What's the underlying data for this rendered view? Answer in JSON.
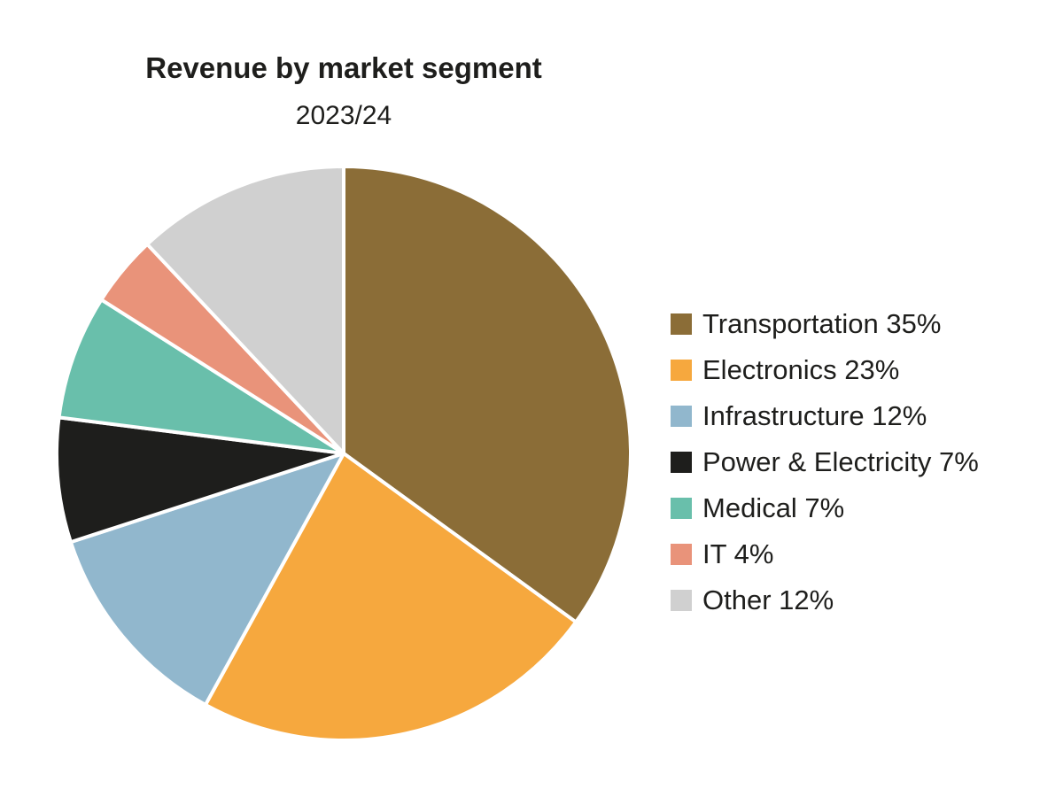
{
  "chart_data": {
    "type": "pie",
    "title": "Revenue by market segment",
    "subtitle": "2023/24",
    "legend_position": "right",
    "slices": [
      {
        "label": "Transportation 35%",
        "name": "Transportation",
        "value": 35,
        "color": "#8B6D37"
      },
      {
        "label": "Electronics 23%",
        "name": "Electronics",
        "value": 23,
        "color": "#F6A83E"
      },
      {
        "label": "Infrastructure 12%",
        "name": "Infrastructure",
        "value": 12,
        "color": "#91B7CD"
      },
      {
        "label": "Power & Electricity 7%",
        "name": "Power & Electricity",
        "value": 7,
        "color": "#1E1E1C"
      },
      {
        "label": "Medical 7%",
        "name": "Medical",
        "value": 7,
        "color": "#69BFAB"
      },
      {
        "label": "IT 4%",
        "name": "IT",
        "value": 4,
        "color": "#E9937A"
      },
      {
        "label": "Other 12%",
        "name": "Other",
        "value": 12,
        "color": "#D0D0D0"
      }
    ]
  }
}
